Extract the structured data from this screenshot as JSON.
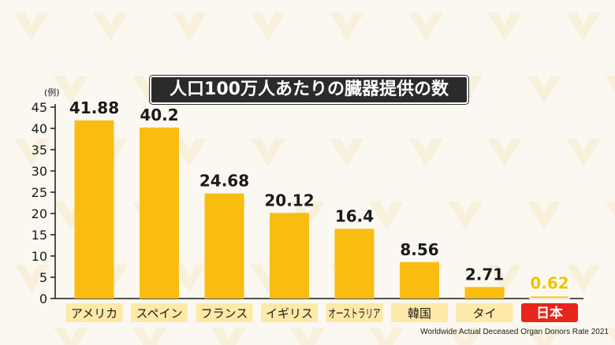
{
  "colors": {
    "bar": "#f9bd12",
    "highlight_bar": "#f2c200",
    "highlight_label_bg": "#e8251b",
    "label_bg": "#fde9a8",
    "axis": "#1a1a1a"
  },
  "chart_data": {
    "type": "bar",
    "title": "人口100万人あたりの臓器提供の数",
    "ylabel": "(例)",
    "xlabel": "",
    "ylim": [
      0,
      45
    ],
    "yticks": [
      0,
      5,
      10,
      15,
      20,
      25,
      30,
      35,
      40,
      45
    ],
    "categories": [
      "アメリカ",
      "スペイン",
      "フランス",
      "イギリス",
      "オーストラリア",
      "韓国",
      "タイ",
      "日本"
    ],
    "values": [
      41.88,
      40.2,
      24.68,
      20.12,
      16.4,
      8.56,
      2.71,
      0.62
    ],
    "value_labels": [
      "41.88",
      "40.2",
      "24.68",
      "20.12",
      "16.4",
      "8.56",
      "2.71",
      "0.62"
    ],
    "highlight_category": "日本",
    "grid": false,
    "legend": "none",
    "source": "Worldwide Actual Deceased Organ Donors Rate 2021"
  }
}
